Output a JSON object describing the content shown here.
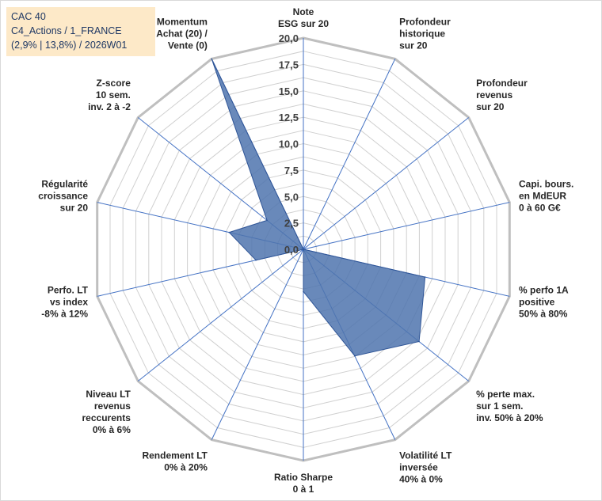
{
  "info_box": {
    "line1": "CAC 40",
    "line2": "C4_Actions / 1_FRANCE",
    "line3": "(2,9% | 13,8%) / 2026W01"
  },
  "colors": {
    "fill": "#4f74ae",
    "stroke": "#2f5597",
    "grid": "#d0d0d0",
    "outer_ring": "#bfbfbf",
    "spoke": "#4472c4",
    "info_bg": "#fde9c8",
    "info_text": "#1f3864"
  },
  "chart_data": {
    "type": "radar",
    "rmin": 0,
    "rmax": 20,
    "tick_step": 2.5,
    "tick_labels": [
      "0,0",
      "2,5",
      "5,0",
      "7,5",
      "10,0",
      "12,5",
      "15,0",
      "17,5",
      "20,0"
    ],
    "categories": [
      [
        "Note",
        "ESG sur 20"
      ],
      [
        "Profondeur",
        "historique",
        "sur 20"
      ],
      [
        "Profondeur",
        "revenus",
        "sur 20"
      ],
      [
        "Capi. bours.",
        "en MdEUR",
        "0 à 60 G€"
      ],
      [
        "% perfo 1A",
        "positive",
        "50% à 80%"
      ],
      [
        "% perte max.",
        "sur 1 sem.",
        "inv. 50% à 20%"
      ],
      [
        "Volatilité LT",
        "inversée",
        "40% à 0%"
      ],
      [
        "Ratio Sharpe",
        "0 à 1"
      ],
      [
        "Rendement LT",
        "0% à 20%"
      ],
      [
        "Niveau LT",
        "revenus",
        "reccurents",
        "0% à 6%"
      ],
      [
        "Perfo. LT",
        "vs index",
        "-8% à 12%"
      ],
      [
        "Régularité",
        "croissance",
        "sur 20"
      ],
      [
        "Z-score",
        "10 sem.",
        "inv. 2 à -2"
      ],
      [
        "Momentum",
        "Achat (20) /",
        "Vente (0)"
      ]
    ],
    "series": [
      {
        "values": [
          0,
          0,
          0,
          0,
          11.8,
          14.0,
          11.2,
          4.0,
          0,
          0,
          4.6,
          7.2,
          4.4,
          20.0
        ]
      }
    ]
  }
}
